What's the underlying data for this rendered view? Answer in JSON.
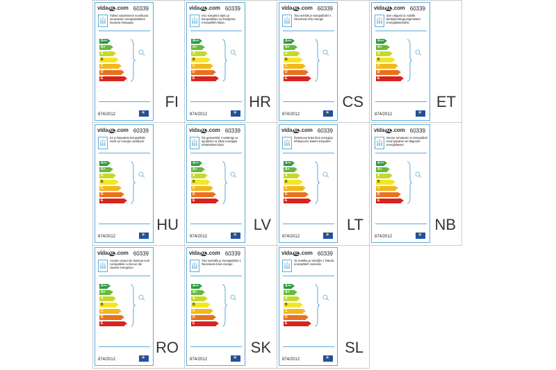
{
  "brand": {
    "prefix": "vida",
    "mid": "XL",
    "suffix": ".com"
  },
  "product_code": "60339",
  "regulation": "874/2012",
  "energy_classes": [
    {
      "label": "A++",
      "color": "#2a9d3a"
    },
    {
      "label": "A+",
      "color": "#66b93c"
    },
    {
      "label": "A",
      "color": "#c6d92b"
    },
    {
      "label": "B",
      "color": "#f5e623"
    },
    {
      "label": "C",
      "color": "#f3b71d"
    },
    {
      "label": "D",
      "color": "#e8711f"
    },
    {
      "label": "E",
      "color": "#d6241f"
    }
  ],
  "labels": [
    {
      "lang": "FI",
      "desc": "Tähän valaisimeen soveltuvat seuraavien energialuokkien kuuluvia lamppuja:"
    },
    {
      "lang": "HR",
      "desc": "Ovo rasvjetno tijelo je kompatibilno sa žaruljama energetskih klasa:"
    },
    {
      "lang": "CS",
      "desc": "Toto svítidlo je kompatibilní s žárovkami této energie"
    },
    {
      "lang": "ET",
      "desc": "See valgusti on sobilik lambipirnidega järgmistest energiaklassidest:"
    },
    {
      "lang": "HU",
      "desc": "Ez a lámpatest kompatibilis izzók az energia osztályok:"
    },
    {
      "lang": "LV",
      "desc": "Šis gaismeklis ir saderīgs ar spuldzēm ar šādu enerģijas efektivitātes klasi:"
    },
    {
      "lang": "LT",
      "desc": "Šviestuvui tinka šios energijos efektyvumo klasės lemputės:"
    },
    {
      "lang": "NB",
      "desc": "Denne armaturen er kompatibel med lyspærer av følgende energiklasser:"
    },
    {
      "lang": "RO",
      "desc": "Aceste corpuri de iluminat sunt compatibile cu becuri din clasele energetice:"
    },
    {
      "lang": "SK",
      "desc": "Toto svietidlo je kompatibilné s žiarovkami tried energie:"
    },
    {
      "lang": "SL",
      "desc": "Ta svetilka je združljiv z žebulic energetskih razredov:"
    }
  ]
}
